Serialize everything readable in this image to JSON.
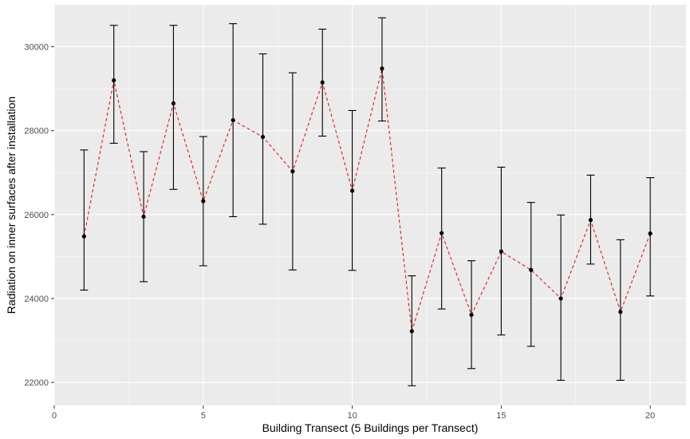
{
  "chart_data": {
    "type": "line",
    "title": "",
    "xlabel": "Building Transect (5 Buildings per Transect)",
    "ylabel": "Radiation on inner surfaces after installation",
    "xlim": [
      0,
      21.2
    ],
    "ylim": [
      21450,
      31000
    ],
    "x_ticks": [
      0,
      5,
      10,
      15,
      20
    ],
    "x_tick_labels": [
      "0",
      "5",
      "10",
      "15",
      "20"
    ],
    "y_ticks": [
      22000,
      24000,
      26000,
      28000,
      30000
    ],
    "y_tick_labels": [
      "22000",
      "24000",
      "26000",
      "28000",
      "30000"
    ],
    "grid": true,
    "legend": "none",
    "colors": {
      "panel": "#ebebeb",
      "grid_major": "#ffffff",
      "line": "#e31a1c",
      "points": "#000000",
      "errorbars": "#000000"
    },
    "series": [
      {
        "x": [
          1,
          2,
          3,
          4,
          5,
          6,
          7,
          8,
          9,
          10,
          11,
          12,
          13,
          14,
          15,
          16,
          17,
          18,
          19,
          20
        ],
        "y": [
          25480,
          29200,
          25950,
          28650,
          26320,
          28250,
          27850,
          27030,
          29150,
          26570,
          29480,
          23220,
          25560,
          23610,
          25120,
          24680,
          24000,
          25870,
          23680,
          25550
        ],
        "ymin": [
          24200,
          27700,
          24400,
          26600,
          24780,
          25950,
          25770,
          24680,
          27870,
          24670,
          28230,
          21920,
          23750,
          22330,
          23130,
          22860,
          22050,
          24820,
          22050,
          24060
        ],
        "ymax": [
          27540,
          30510,
          27500,
          30510,
          27860,
          30550,
          29830,
          29380,
          30420,
          28480,
          30690,
          24540,
          27110,
          24900,
          27130,
          26290,
          25990,
          26940,
          25400,
          26880
        ]
      }
    ]
  }
}
